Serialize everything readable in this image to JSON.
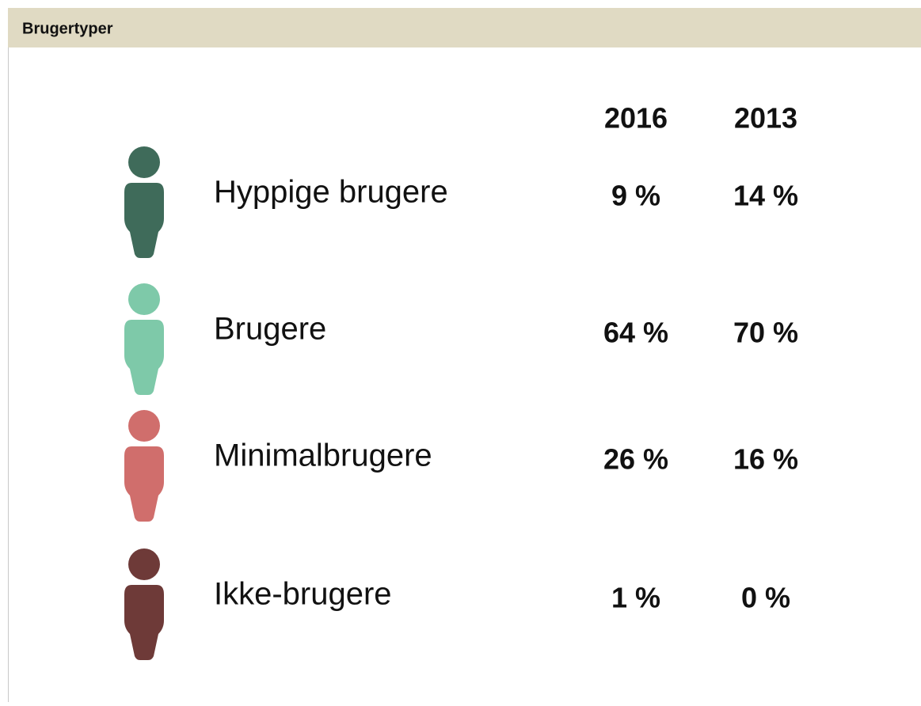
{
  "header": {
    "title": "Brugertyper"
  },
  "table": {
    "columns": [
      "2016",
      "2013"
    ],
    "rows": [
      {
        "label": "Hyppige brugere",
        "values": [
          "9 %",
          "14 %"
        ],
        "color": "#3f6b5a"
      },
      {
        "label": "Brugere",
        "values": [
          "64 %",
          "70 %"
        ],
        "color": "#7ec9a9"
      },
      {
        "label": "Minimalbrugere",
        "values": [
          "26 %",
          "16 %"
        ],
        "color": "#d06e6c"
      },
      {
        "label": "Ikke-brugere",
        "values": [
          "1 %",
          "0 %"
        ],
        "color": "#6e3a38"
      }
    ]
  }
}
